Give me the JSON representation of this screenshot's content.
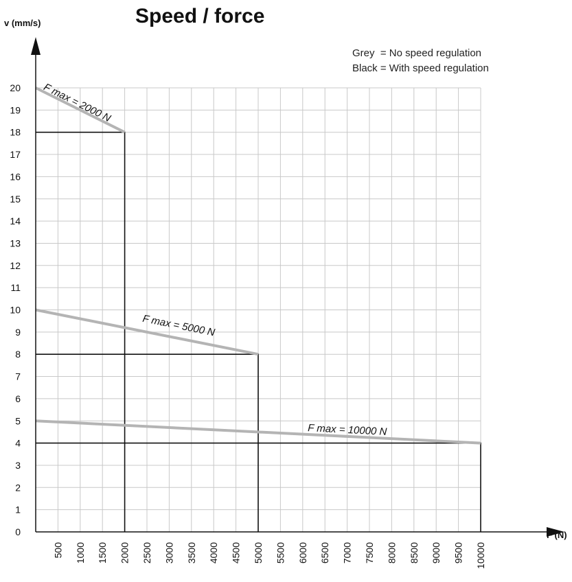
{
  "chart_data": {
    "type": "line",
    "title": "Speed / force",
    "xlabel": "F (N)",
    "ylabel": "v (mm/s)",
    "xlim": [
      0,
      10000
    ],
    "ylim": [
      0,
      20
    ],
    "x_ticks": [
      500,
      1000,
      1500,
      2000,
      2500,
      3000,
      3500,
      4000,
      4500,
      5000,
      5500,
      6000,
      6500,
      7000,
      7500,
      8000,
      8500,
      9000,
      9500,
      10000
    ],
    "y_ticks": [
      0,
      1,
      2,
      3,
      4,
      5,
      6,
      7,
      8,
      9,
      10,
      11,
      12,
      13,
      14,
      15,
      16,
      17,
      18,
      19,
      20
    ],
    "grid": true,
    "legend": {
      "position": "top-right",
      "entries": [
        {
          "text": "Grey  = No speed regulation",
          "color": "#b4b4b4"
        },
        {
          "text": "Black = With speed regulation",
          "color": "#111111"
        }
      ]
    },
    "series": [
      {
        "name": "No speed regulation",
        "color": "#b4b4b4",
        "points": [
          [
            0,
            20
          ],
          [
            2000,
            18
          ]
        ]
      },
      {
        "name": "With speed regulation",
        "color": "#111111",
        "points": [
          [
            0,
            18
          ],
          [
            2000,
            18
          ],
          [
            2000,
            0
          ]
        ]
      },
      {
        "name": "No speed regulation",
        "color": "#b4b4b4",
        "points": [
          [
            0,
            10
          ],
          [
            5000,
            8
          ]
        ]
      },
      {
        "name": "With speed regulation",
        "color": "#111111",
        "points": [
          [
            0,
            8
          ],
          [
            5000,
            8
          ],
          [
            5000,
            0
          ]
        ]
      },
      {
        "name": "No speed regulation",
        "color": "#b4b4b4",
        "points": [
          [
            0,
            5
          ],
          [
            10000,
            4
          ]
        ]
      },
      {
        "name": "With speed regulation",
        "color": "#111111",
        "points": [
          [
            0,
            4
          ],
          [
            10000,
            4
          ],
          [
            10000,
            0
          ]
        ]
      }
    ],
    "annotations": [
      {
        "text": "F max = 2000 N",
        "x": 900,
        "y": 19.2
      },
      {
        "text": "F max = 5000 N",
        "x": 3200,
        "y": 9.15
      },
      {
        "text": "F max = 10000 N",
        "x": 7000,
        "y": 4.45
      }
    ]
  }
}
